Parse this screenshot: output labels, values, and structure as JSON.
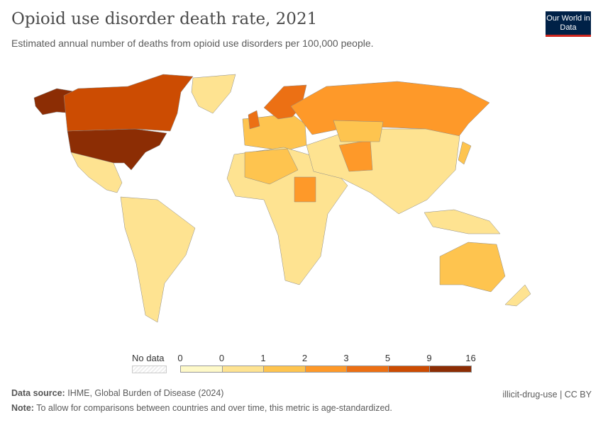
{
  "header": {
    "title": "Opioid use disorder death rate, 2021",
    "subtitle": "Estimated annual number of deaths from opioid use disorders per 100,000 people.",
    "logo_text": "Our World in Data"
  },
  "legend": {
    "no_data_label": "No data",
    "ticks": [
      "0",
      "0",
      "1",
      "2",
      "3",
      "5",
      "9",
      "16"
    ],
    "colors": [
      "#fef9c8",
      "#fee391",
      "#fec44f",
      "#fe9929",
      "#ec7014",
      "#cc4c02",
      "#8c2d04"
    ]
  },
  "regions": [
    {
      "name": "united-states",
      "color": "#8c2d04"
    },
    {
      "name": "alaska",
      "color": "#8c2d04"
    },
    {
      "name": "canada",
      "color": "#cc4c02"
    },
    {
      "name": "greenland",
      "color": "#fee391"
    },
    {
      "name": "mexico-central-america",
      "color": "#fee391"
    },
    {
      "name": "south-america",
      "color": "#fee391"
    },
    {
      "name": "europe",
      "color": "#fec44f"
    },
    {
      "name": "united-kingdom",
      "color": "#ec7014"
    },
    {
      "name": "scandinavia",
      "color": "#ec7014"
    },
    {
      "name": "russia",
      "color": "#fe9929"
    },
    {
      "name": "africa",
      "color": "#fee391"
    },
    {
      "name": "north-africa",
      "color": "#fec44f"
    },
    {
      "name": "sudan",
      "color": "#fe9929"
    },
    {
      "name": "asia",
      "color": "#fee391"
    },
    {
      "name": "iran-afghanistan",
      "color": "#fe9929"
    },
    {
      "name": "kazakhstan",
      "color": "#fec44f"
    },
    {
      "name": "japan",
      "color": "#fec44f"
    },
    {
      "name": "southeast-asia",
      "color": "#fee391"
    },
    {
      "name": "australia",
      "color": "#fec44f"
    },
    {
      "name": "new-zealand",
      "color": "#fee391"
    }
  ],
  "footer": {
    "source_label": "Data source:",
    "source": "IHME, Global Burden of Disease (2024)",
    "note_label": "Note:",
    "note": "To allow for comparisons between countries and over time, this metric is age-standardized.",
    "slug": "illicit-drug-use | CC BY"
  }
}
